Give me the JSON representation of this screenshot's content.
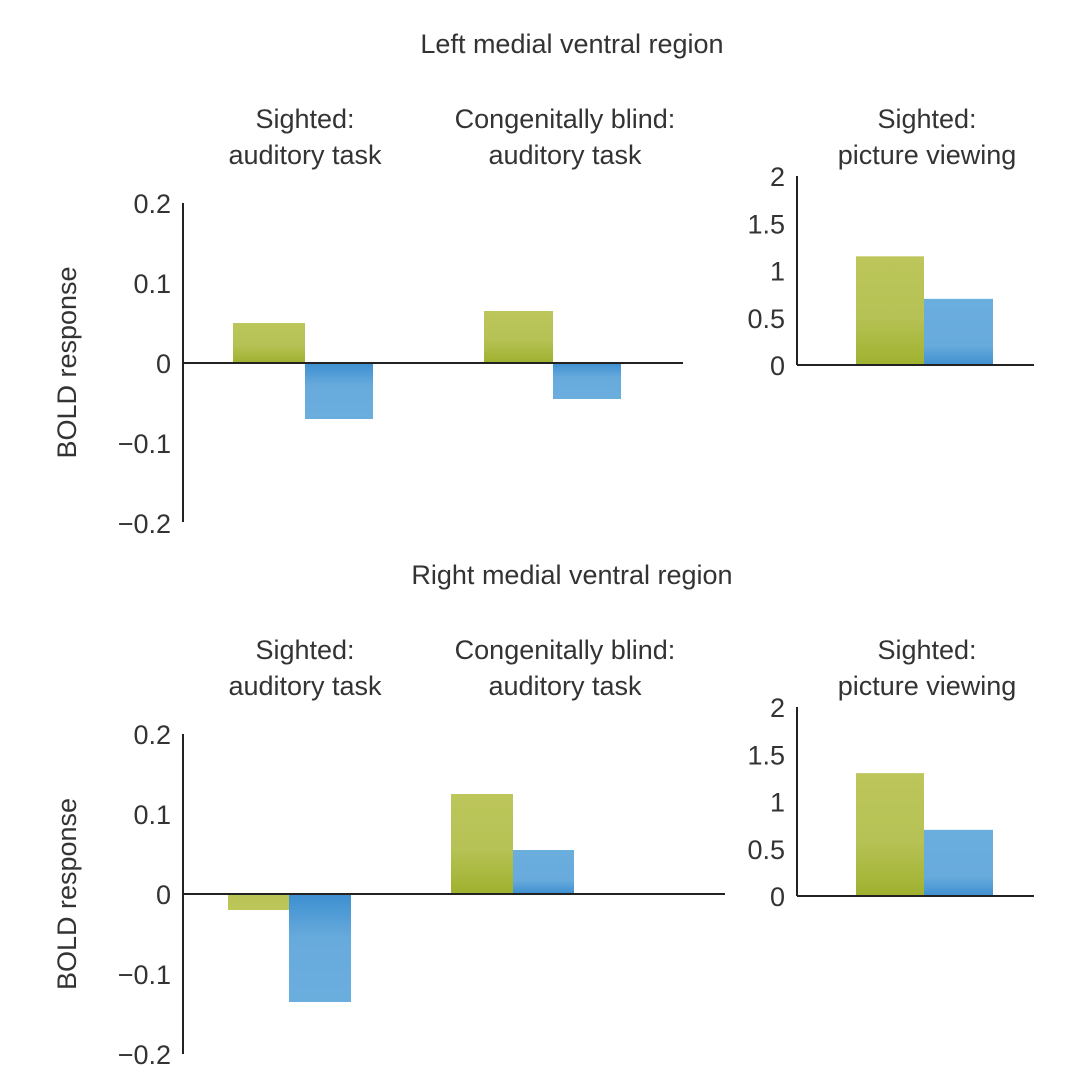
{
  "chart_data": [
    {
      "type": "bar",
      "region": "Left medial ventral region",
      "title": "Left medial ventral region",
      "ylabel": "BOLD response",
      "panels": [
        {
          "title_lines": [
            "Sighted:",
            "auditory task"
          ],
          "ylim": [
            -0.2,
            0.2
          ],
          "yticks": [
            0.2,
            0.1,
            0,
            -0.1,
            -0.2
          ],
          "ytick_labels": [
            "0.2",
            "0.1",
            "0",
            "−0.1",
            "−0.2"
          ],
          "series": [
            {
              "name": "green",
              "color": "#a8b83a",
              "value": 0.05
            },
            {
              "name": "blue",
              "color": "#5aa3d9",
              "value": -0.07
            }
          ]
        },
        {
          "title_lines": [
            "Congenitally blind:",
            "auditory task"
          ],
          "ylim": [
            -0.2,
            0.2
          ],
          "series": [
            {
              "name": "green",
              "color": "#a8b83a",
              "value": 0.065
            },
            {
              "name": "blue",
              "color": "#5aa3d9",
              "value": -0.045
            }
          ]
        },
        {
          "title_lines": [
            "Sighted:",
            "picture viewing"
          ],
          "ylim": [
            0,
            2
          ],
          "yticks": [
            2,
            1.5,
            1,
            0.5,
            0
          ],
          "ytick_labels": [
            "2",
            "1.5",
            "1",
            "0.5",
            "0"
          ],
          "series": [
            {
              "name": "green",
              "color": "#a8b83a",
              "value": 1.15
            },
            {
              "name": "blue",
              "color": "#5aa3d9",
              "value": 0.7
            }
          ]
        }
      ]
    },
    {
      "type": "bar",
      "region": "Right medial ventral region",
      "title": "Right medial ventral region",
      "ylabel": "BOLD response",
      "panels": [
        {
          "title_lines": [
            "Sighted:",
            "auditory task"
          ],
          "ylim": [
            -0.2,
            0.2
          ],
          "yticks": [
            0.2,
            0.1,
            0,
            -0.1,
            -0.2
          ],
          "ytick_labels": [
            "0.2",
            "0.1",
            "0",
            "−0.1",
            "−0.2"
          ],
          "series": [
            {
              "name": "green",
              "color": "#a8b83a",
              "value": -0.02
            },
            {
              "name": "blue",
              "color": "#5aa3d9",
              "value": -0.135
            }
          ]
        },
        {
          "title_lines": [
            "Congenitally blind:",
            "auditory task"
          ],
          "ylim": [
            -0.2,
            0.2
          ],
          "series": [
            {
              "name": "green",
              "color": "#a8b83a",
              "value": 0.125
            },
            {
              "name": "blue",
              "color": "#5aa3d9",
              "value": 0.055
            }
          ]
        },
        {
          "title_lines": [
            "Sighted:",
            "picture viewing"
          ],
          "ylim": [
            0,
            2
          ],
          "yticks": [
            2,
            1.5,
            1,
            0.5,
            0
          ],
          "ytick_labels": [
            "2",
            "1.5",
            "1",
            "0.5",
            "0"
          ],
          "series": [
            {
              "name": "green",
              "color": "#a8b83a",
              "value": 1.3
            },
            {
              "name": "blue",
              "color": "#5aa3d9",
              "value": 0.7
            }
          ]
        }
      ]
    }
  ],
  "colors": {
    "green_top": "#bcc65a",
    "green_bottom": "#9fb12e",
    "blue_top": "#6aaede",
    "blue_bottom": "#3d8fd0"
  }
}
